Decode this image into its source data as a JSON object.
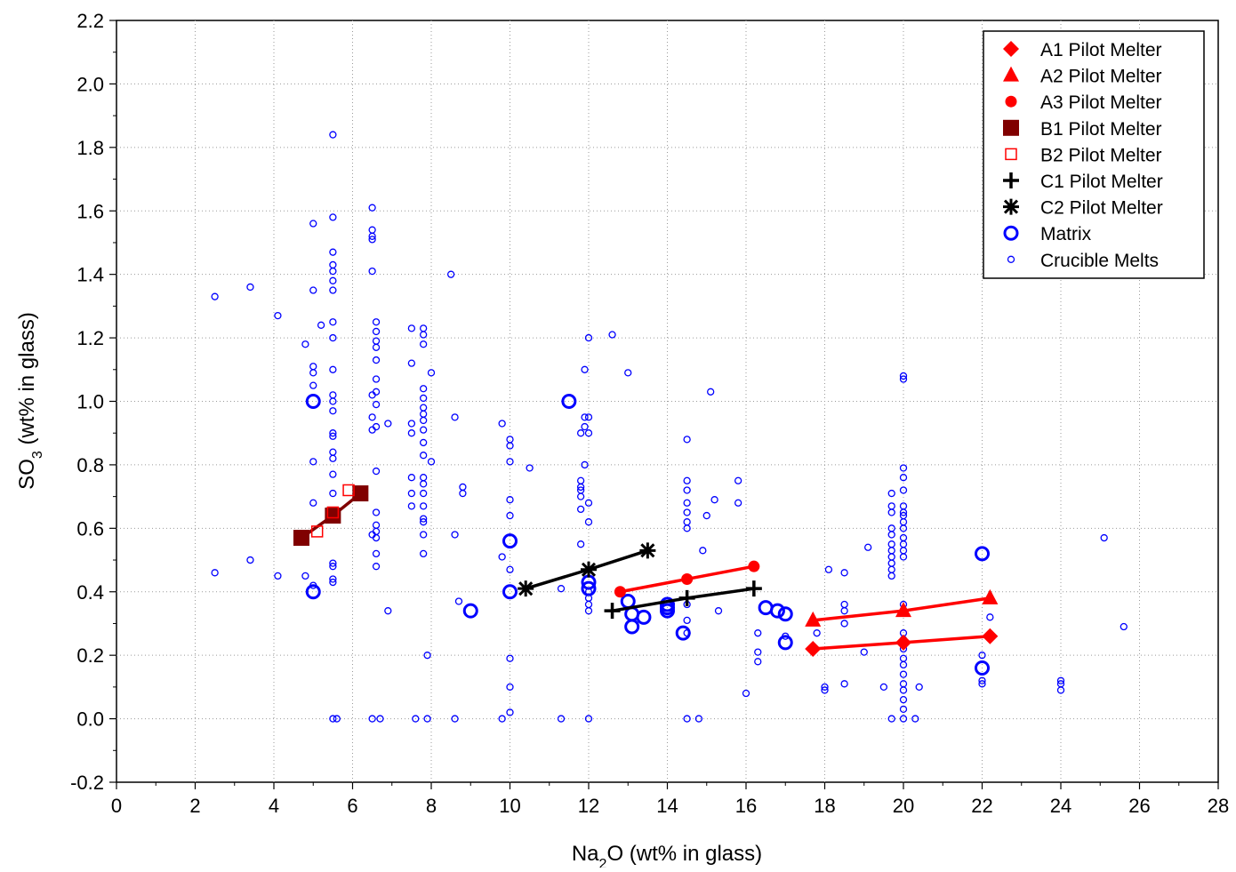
{
  "chart_data": {
    "type": "scatter",
    "title": "",
    "xlabel": "Na2O (wt% in glass)",
    "ylabel": "SO3 (wt% in glass)",
    "xlabel_parts": {
      "pre": "Na",
      "sub": "2",
      "post": "O (wt% in glass)"
    },
    "ylabel_parts": {
      "pre": "SO",
      "sub": "3",
      "post": " (wt% in glass)"
    },
    "xlim": [
      0,
      28
    ],
    "ylim": [
      -0.2,
      2.2
    ],
    "x_ticks": [
      "0",
      "2",
      "4",
      "6",
      "8",
      "10",
      "12",
      "14",
      "16",
      "18",
      "20",
      "22",
      "24",
      "26",
      "28"
    ],
    "y_ticks": [
      "-0.2",
      "0.0",
      "0.2",
      "0.4",
      "0.6",
      "0.8",
      "1.0",
      "1.2",
      "1.4",
      "1.6",
      "1.8",
      "2.0",
      "2.2"
    ],
    "grid": true,
    "legend_position": "top-right",
    "colors": {
      "red": "#ff0000",
      "darkred": "#800000",
      "blue": "#0000ff",
      "black": "#000000"
    },
    "series": [
      {
        "name": "A1 Pilot Melter",
        "marker": "diamond",
        "color": "#ff0000",
        "line": true,
        "points": [
          [
            17.7,
            0.22
          ],
          [
            20.0,
            0.24
          ],
          [
            22.2,
            0.26
          ]
        ]
      },
      {
        "name": "A2 Pilot Melter",
        "marker": "triangle",
        "color": "#ff0000",
        "line": true,
        "points": [
          [
            17.7,
            0.31
          ],
          [
            20.0,
            0.34
          ],
          [
            22.2,
            0.38
          ]
        ]
      },
      {
        "name": "A3 Pilot Melter",
        "marker": "circle-filled",
        "color": "#ff0000",
        "line": true,
        "points": [
          [
            12.8,
            0.4
          ],
          [
            14.5,
            0.44
          ],
          [
            16.2,
            0.48
          ]
        ]
      },
      {
        "name": "B1 Pilot Melter",
        "marker": "square-filled",
        "color": "#800000",
        "line": true,
        "points": [
          [
            4.7,
            0.57
          ],
          [
            5.5,
            0.64
          ],
          [
            6.2,
            0.71
          ]
        ]
      },
      {
        "name": "B2 Pilot Melter",
        "marker": "square-open",
        "color": "#ff0000",
        "line": false,
        "points": [
          [
            5.1,
            0.59
          ],
          [
            5.5,
            0.65
          ],
          [
            5.9,
            0.72
          ]
        ]
      },
      {
        "name": "C1 Pilot Melter",
        "marker": "plus",
        "color": "#000000",
        "line": true,
        "points": [
          [
            12.6,
            0.34
          ],
          [
            14.5,
            0.38
          ],
          [
            16.2,
            0.41
          ]
        ]
      },
      {
        "name": "C2 Pilot Melter",
        "marker": "asterisk",
        "color": "#000000",
        "line": true,
        "points": [
          [
            10.4,
            0.41
          ],
          [
            12.0,
            0.47
          ],
          [
            13.5,
            0.53
          ]
        ]
      },
      {
        "name": "Matrix",
        "marker": "circle-open-large",
        "color": "#0000ff",
        "line": false,
        "points": [
          [
            5.0,
            1.0
          ],
          [
            5.0,
            0.4
          ],
          [
            9.0,
            0.34
          ],
          [
            10.0,
            0.56
          ],
          [
            10.0,
            0.4
          ],
          [
            11.5,
            1.0
          ],
          [
            12.0,
            0.41
          ],
          [
            12.0,
            0.43
          ],
          [
            13.0,
            0.37
          ],
          [
            13.1,
            0.33
          ],
          [
            13.1,
            0.29
          ],
          [
            13.4,
            0.32
          ],
          [
            14.0,
            0.36
          ],
          [
            14.0,
            0.35
          ],
          [
            14.0,
            0.34
          ],
          [
            14.4,
            0.27
          ],
          [
            16.5,
            0.35
          ],
          [
            16.8,
            0.34
          ],
          [
            17.0,
            0.33
          ],
          [
            17.0,
            0.24
          ],
          [
            22.0,
            0.52
          ],
          [
            22.0,
            0.16
          ]
        ]
      },
      {
        "name": "Crucible Melts",
        "marker": "circle-open-small",
        "color": "#0000ff",
        "line": false,
        "points": [
          [
            2.5,
            1.33
          ],
          [
            2.5,
            0.46
          ],
          [
            3.4,
            1.36
          ],
          [
            3.4,
            0.5
          ],
          [
            4.1,
            1.27
          ],
          [
            4.1,
            0.45
          ],
          [
            4.8,
            1.18
          ],
          [
            4.8,
            0.45
          ],
          [
            5.0,
            1.56
          ],
          [
            5.0,
            1.35
          ],
          [
            5.0,
            1.11
          ],
          [
            5.0,
            1.09
          ],
          [
            5.0,
            1.05
          ],
          [
            5.0,
            0.81
          ],
          [
            5.0,
            0.68
          ],
          [
            5.0,
            0.42
          ],
          [
            5.2,
            1.24
          ],
          [
            5.5,
            1.84
          ],
          [
            5.5,
            1.58
          ],
          [
            5.5,
            1.47
          ],
          [
            5.5,
            1.43
          ],
          [
            5.5,
            1.41
          ],
          [
            5.5,
            1.38
          ],
          [
            5.5,
            1.35
          ],
          [
            5.5,
            1.25
          ],
          [
            5.5,
            1.2
          ],
          [
            5.5,
            1.1
          ],
          [
            5.5,
            1.02
          ],
          [
            5.5,
            1.0
          ],
          [
            5.5,
            0.97
          ],
          [
            5.5,
            0.9
          ],
          [
            5.5,
            0.89
          ],
          [
            5.5,
            0.84
          ],
          [
            5.5,
            0.82
          ],
          [
            5.5,
            0.77
          ],
          [
            5.5,
            0.71
          ],
          [
            5.5,
            0.49
          ],
          [
            5.5,
            0.48
          ],
          [
            5.5,
            0.44
          ],
          [
            5.5,
            0.43
          ],
          [
            5.5,
            0.0
          ],
          [
            5.6,
            0.0
          ],
          [
            6.5,
            1.61
          ],
          [
            6.5,
            1.54
          ],
          [
            6.5,
            1.52
          ],
          [
            6.5,
            1.51
          ],
          [
            6.5,
            1.41
          ],
          [
            6.5,
            1.02
          ],
          [
            6.5,
            0.95
          ],
          [
            6.5,
            0.91
          ],
          [
            6.5,
            0.58
          ],
          [
            6.5,
            0.0
          ],
          [
            6.6,
            1.25
          ],
          [
            6.6,
            1.22
          ],
          [
            6.6,
            1.19
          ],
          [
            6.6,
            1.17
          ],
          [
            6.6,
            1.13
          ],
          [
            6.6,
            1.07
          ],
          [
            6.6,
            1.03
          ],
          [
            6.6,
            0.99
          ],
          [
            6.6,
            0.92
          ],
          [
            6.6,
            0.78
          ],
          [
            6.6,
            0.65
          ],
          [
            6.6,
            0.61
          ],
          [
            6.6,
            0.59
          ],
          [
            6.6,
            0.57
          ],
          [
            6.6,
            0.52
          ],
          [
            6.6,
            0.48
          ],
          [
            6.7,
            0.0
          ],
          [
            6.9,
            0.93
          ],
          [
            6.9,
            0.34
          ],
          [
            7.5,
            1.23
          ],
          [
            7.5,
            1.12
          ],
          [
            7.5,
            0.93
          ],
          [
            7.5,
            0.9
          ],
          [
            7.5,
            0.76
          ],
          [
            7.5,
            0.71
          ],
          [
            7.5,
            0.67
          ],
          [
            7.6,
            0.0
          ],
          [
            7.8,
            1.23
          ],
          [
            7.8,
            1.21
          ],
          [
            7.8,
            1.18
          ],
          [
            7.8,
            1.04
          ],
          [
            7.8,
            1.01
          ],
          [
            7.8,
            0.98
          ],
          [
            7.8,
            0.96
          ],
          [
            7.8,
            0.94
          ],
          [
            7.8,
            0.91
          ],
          [
            7.8,
            0.87
          ],
          [
            7.8,
            0.83
          ],
          [
            7.8,
            0.76
          ],
          [
            7.8,
            0.74
          ],
          [
            7.8,
            0.71
          ],
          [
            7.8,
            0.67
          ],
          [
            7.8,
            0.63
          ],
          [
            7.8,
            0.62
          ],
          [
            7.8,
            0.58
          ],
          [
            7.8,
            0.52
          ],
          [
            7.9,
            0.2
          ],
          [
            7.9,
            0.0
          ],
          [
            8.0,
            1.09
          ],
          [
            8.0,
            0.81
          ],
          [
            8.5,
            1.4
          ],
          [
            8.6,
            0.95
          ],
          [
            8.6,
            0.58
          ],
          [
            8.6,
            0.0
          ],
          [
            8.7,
            0.37
          ],
          [
            8.8,
            0.73
          ],
          [
            8.8,
            0.71
          ],
          [
            9.8,
            0.93
          ],
          [
            9.8,
            0.51
          ],
          [
            9.8,
            0.0
          ],
          [
            10.0,
            0.88
          ],
          [
            10.0,
            0.86
          ],
          [
            10.0,
            0.81
          ],
          [
            10.0,
            0.69
          ],
          [
            10.0,
            0.64
          ],
          [
            10.0,
            0.47
          ],
          [
            10.0,
            0.19
          ],
          [
            10.0,
            0.1
          ],
          [
            10.0,
            0.02
          ],
          [
            10.5,
            0.79
          ],
          [
            11.3,
            0.41
          ],
          [
            11.3,
            0.0
          ],
          [
            11.8,
            0.9
          ],
          [
            11.8,
            0.75
          ],
          [
            11.8,
            0.73
          ],
          [
            11.8,
            0.72
          ],
          [
            11.8,
            0.7
          ],
          [
            11.8,
            0.66
          ],
          [
            11.8,
            0.55
          ],
          [
            11.9,
            1.1
          ],
          [
            11.9,
            0.92
          ],
          [
            11.9,
            0.95
          ],
          [
            11.9,
            0.8
          ],
          [
            12.0,
            1.2
          ],
          [
            12.0,
            0.95
          ],
          [
            12.0,
            0.9
          ],
          [
            12.0,
            0.68
          ],
          [
            12.0,
            0.62
          ],
          [
            12.0,
            0.4
          ],
          [
            12.0,
            0.38
          ],
          [
            12.0,
            0.36
          ],
          [
            12.0,
            0.34
          ],
          [
            12.0,
            0.0
          ],
          [
            12.6,
            1.21
          ],
          [
            13.0,
            1.09
          ],
          [
            14.5,
            0.88
          ],
          [
            14.5,
            0.75
          ],
          [
            14.5,
            0.72
          ],
          [
            14.5,
            0.68
          ],
          [
            14.5,
            0.65
          ],
          [
            14.5,
            0.62
          ],
          [
            14.5,
            0.6
          ],
          [
            14.5,
            0.36
          ],
          [
            14.5,
            0.31
          ],
          [
            14.5,
            0.27
          ],
          [
            14.5,
            0.0
          ],
          [
            14.8,
            0.0
          ],
          [
            14.9,
            0.53
          ],
          [
            15.0,
            0.64
          ],
          [
            15.1,
            1.03
          ],
          [
            15.2,
            0.69
          ],
          [
            15.3,
            0.34
          ],
          [
            15.8,
            0.75
          ],
          [
            15.8,
            0.68
          ],
          [
            16.0,
            0.08
          ],
          [
            16.3,
            0.27
          ],
          [
            16.3,
            0.21
          ],
          [
            16.3,
            0.18
          ],
          [
            17.0,
            0.26
          ],
          [
            17.8,
            0.27
          ],
          [
            18.0,
            0.1
          ],
          [
            18.0,
            0.09
          ],
          [
            18.1,
            0.47
          ],
          [
            18.5,
            0.46
          ],
          [
            18.5,
            0.36
          ],
          [
            18.5,
            0.34
          ],
          [
            18.5,
            0.3
          ],
          [
            18.5,
            0.11
          ],
          [
            19.0,
            0.21
          ],
          [
            19.1,
            0.54
          ],
          [
            19.5,
            0.1
          ],
          [
            19.7,
            0.71
          ],
          [
            19.7,
            0.67
          ],
          [
            19.7,
            0.65
          ],
          [
            19.7,
            0.6
          ],
          [
            19.7,
            0.58
          ],
          [
            19.7,
            0.55
          ],
          [
            19.7,
            0.53
          ],
          [
            19.7,
            0.51
          ],
          [
            19.7,
            0.49
          ],
          [
            19.7,
            0.47
          ],
          [
            19.7,
            0.45
          ],
          [
            19.7,
            0.0
          ],
          [
            20.0,
            1.08
          ],
          [
            20.0,
            1.07
          ],
          [
            20.0,
            0.79
          ],
          [
            20.0,
            0.76
          ],
          [
            20.0,
            0.72
          ],
          [
            20.0,
            0.67
          ],
          [
            20.0,
            0.65
          ],
          [
            20.0,
            0.64
          ],
          [
            20.0,
            0.62
          ],
          [
            20.0,
            0.6
          ],
          [
            20.0,
            0.57
          ],
          [
            20.0,
            0.55
          ],
          [
            20.0,
            0.53
          ],
          [
            20.0,
            0.51
          ],
          [
            20.0,
            0.36
          ],
          [
            20.0,
            0.27
          ],
          [
            20.0,
            0.25
          ],
          [
            20.0,
            0.22
          ],
          [
            20.0,
            0.19
          ],
          [
            20.0,
            0.17
          ],
          [
            20.0,
            0.14
          ],
          [
            20.0,
            0.11
          ],
          [
            20.0,
            0.09
          ],
          [
            20.0,
            0.06
          ],
          [
            20.0,
            0.03
          ],
          [
            20.0,
            0.0
          ],
          [
            20.3,
            0.0
          ],
          [
            20.4,
            0.1
          ],
          [
            22.0,
            0.2
          ],
          [
            22.0,
            0.12
          ],
          [
            22.0,
            0.11
          ],
          [
            22.2,
            0.32
          ],
          [
            24.0,
            0.12
          ],
          [
            24.0,
            0.11
          ],
          [
            24.0,
            0.09
          ],
          [
            25.1,
            0.57
          ],
          [
            25.6,
            0.29
          ]
        ]
      }
    ]
  }
}
